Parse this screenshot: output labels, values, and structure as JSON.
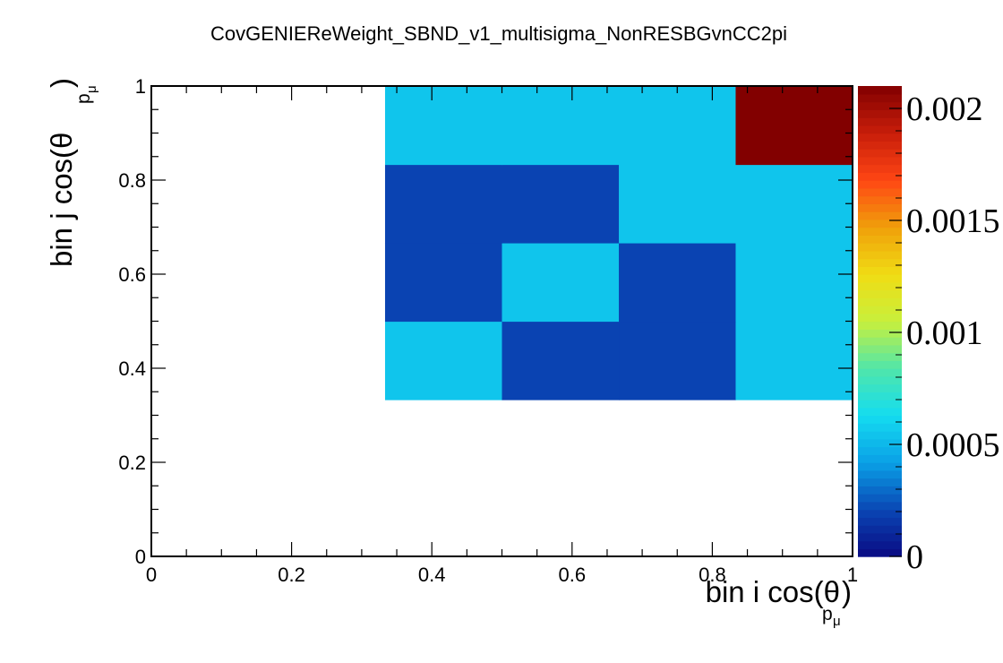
{
  "chart_data": {
    "type": "heatmap",
    "title": "CovGENIEReWeight_SBND_v1_multisigma_NonRESBGvnCC2pi",
    "xlabel": {
      "main": "bin i cos(θ",
      "sub": "p",
      "subsub": "μ",
      "close": ")"
    },
    "ylabel": {
      "main": "bin j cos(θ",
      "sub": "p",
      "subsub": "μ",
      "close": ")"
    },
    "xlim": [
      0,
      1
    ],
    "ylim": [
      0,
      1
    ],
    "x_ticks": [
      "0",
      "0.2",
      "0.4",
      "0.6",
      "0.8",
      "1"
    ],
    "y_ticks": [
      "0",
      "0.2",
      "0.4",
      "0.6",
      "0.8",
      "1"
    ],
    "x_edges": [
      0,
      0.1667,
      0.3333,
      0.5,
      0.6667,
      0.8333,
      1
    ],
    "y_edges": [
      0,
      0.1667,
      0.3333,
      0.5,
      0.6667,
      0.8333,
      1
    ],
    "z": [
      [
        null,
        null,
        null,
        null,
        null,
        null
      ],
      [
        null,
        null,
        null,
        null,
        null,
        null
      ],
      [
        null,
        null,
        0.00055,
        0.0002,
        0.0002,
        0.00055
      ],
      [
        null,
        null,
        0.0002,
        0.00055,
        0.0002,
        0.00055
      ],
      [
        null,
        null,
        0.0002,
        0.0002,
        0.00055,
        0.00055
      ],
      [
        null,
        null,
        0.00055,
        0.00055,
        0.00055,
        0.0021
      ]
    ],
    "zlim": [
      0,
      0.0021
    ],
    "colorbar_ticks": [
      "0",
      "0.0005",
      "0.001",
      "0.0015",
      "0.002"
    ],
    "colorbar_tick_values": [
      0,
      0.0005,
      0.001,
      0.0015,
      0.002
    ],
    "colormap": [
      "#0a0a82",
      "#0a46b4",
      "#0aa0e6",
      "#14dcf0",
      "#50e6aa",
      "#c8f03c",
      "#f0dc14",
      "#f0a00a",
      "#ff4614",
      "#c81e0a",
      "#820000"
    ],
    "grid": false,
    "legend": "colorbar-right"
  }
}
